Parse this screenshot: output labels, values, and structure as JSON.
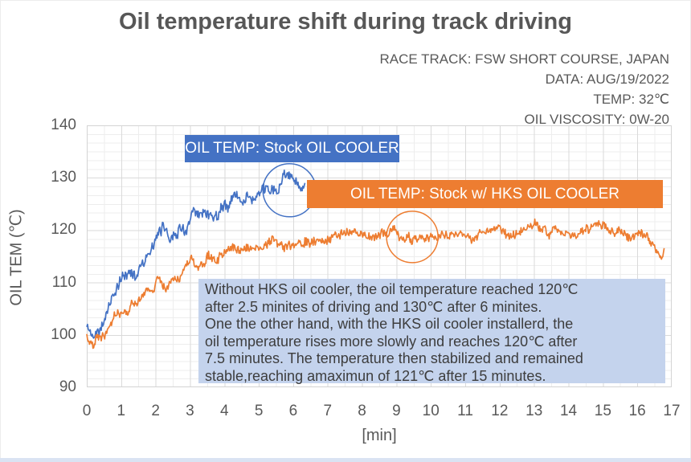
{
  "meta": {
    "lines": [
      "RACE TRACK: FSW SHORT COURSE, JAPAN",
      "DATA: AUG/19/2022",
      "TEMP: 32℃",
      "OIL VISCOSITY: 0W-20"
    ]
  },
  "annotation": {
    "lines": [
      "Without HKS oil cooler, the oil temperature reached 120℃",
      "after 2.5 minites of driving and 130℃ after 6 minites.",
      "One the other hand, with the HKS oil cooler installerd, the",
      "oil temperature rises more slowly and reaches 120℃ after",
      "7.5 minutes. The temperature then stabilized and remained",
      "stable,reaching amaximun of 121℃ after 15 minutes."
    ],
    "background": "#c4d3ed"
  },
  "chart_data": {
    "type": "line",
    "title": "Oil temperature shift during track driving",
    "xlabel": "[min]",
    "ylabel": "OIL TEM (℃)",
    "xlim": [
      0,
      17
    ],
    "ylim": [
      90,
      140
    ],
    "xticks": [
      0,
      1,
      2,
      3,
      4,
      5,
      6,
      7,
      8,
      9,
      10,
      11,
      12,
      13,
      14,
      15,
      16,
      17
    ],
    "yticks": [
      90,
      100,
      110,
      120,
      130,
      140
    ],
    "grid": {
      "x_minor_min": 0.5,
      "y_minor_degC": 1.667,
      "on": true
    },
    "legend_position": "inside-top",
    "series": [
      {
        "name": "OIL TEMP: Stock OIL COOLER",
        "color": "#4472C4",
        "trend_anchors_min_degC": [
          [
            0,
            101.5
          ],
          [
            0.15,
            99.8
          ],
          [
            0.3,
            101
          ],
          [
            0.5,
            103.5
          ],
          [
            0.75,
            107
          ],
          [
            1.0,
            110.5
          ],
          [
            1.25,
            112
          ],
          [
            1.45,
            111.5
          ],
          [
            1.6,
            114.5
          ],
          [
            1.75,
            115
          ],
          [
            2.0,
            117
          ],
          [
            2.25,
            121
          ],
          [
            2.4,
            118.5
          ],
          [
            2.55,
            120
          ],
          [
            2.75,
            121.5
          ],
          [
            2.9,
            120
          ],
          [
            3.1,
            123
          ],
          [
            3.3,
            122.5
          ],
          [
            3.5,
            123.5
          ],
          [
            3.7,
            123
          ],
          [
            3.9,
            124.5
          ],
          [
            4.1,
            124.5
          ],
          [
            4.3,
            126.5
          ],
          [
            4.5,
            125.5
          ],
          [
            4.7,
            126
          ],
          [
            4.9,
            126.5
          ],
          [
            5.05,
            128
          ],
          [
            5.2,
            127
          ],
          [
            5.4,
            127.5
          ],
          [
            5.55,
            126.5
          ],
          [
            5.7,
            129
          ],
          [
            5.85,
            130.5
          ],
          [
            6.0,
            130
          ],
          [
            6.1,
            128.5
          ],
          [
            6.2,
            127
          ],
          [
            6.3,
            126.5
          ],
          [
            6.35,
            127
          ]
        ],
        "noise": {
          "fast_amp": 0.85,
          "slow_amp": 1.0,
          "seed": 42
        },
        "key_points": {
          "reaches_120C_min": 2.5,
          "reaches_130C_min": 6,
          "end_min": 6.35
        }
      },
      {
        "name": "OIL TEMP: Stock w/ HKS OIL COOLER",
        "color": "#ED7D31",
        "trend_anchors_min_degC": [
          [
            0,
            99.8
          ],
          [
            0.2,
            98.8
          ],
          [
            0.35,
            100
          ],
          [
            0.5,
            99.5
          ],
          [
            0.7,
            101.5
          ],
          [
            0.9,
            103.5
          ],
          [
            1.1,
            105
          ],
          [
            1.3,
            106
          ],
          [
            1.5,
            105.5
          ],
          [
            1.7,
            107.5
          ],
          [
            1.9,
            108.5
          ],
          [
            2.1,
            110.5
          ],
          [
            2.3,
            108.8
          ],
          [
            2.5,
            110.5
          ],
          [
            2.7,
            111.5
          ],
          [
            2.9,
            113.5
          ],
          [
            3.05,
            115
          ],
          [
            3.2,
            113.5
          ],
          [
            3.4,
            114
          ],
          [
            3.6,
            115
          ],
          [
            3.8,
            114
          ],
          [
            4.0,
            115.5
          ],
          [
            4.25,
            116
          ],
          [
            4.5,
            116
          ],
          [
            4.75,
            116.5
          ],
          [
            5.0,
            116.5
          ],
          [
            5.25,
            117
          ],
          [
            5.5,
            117.5
          ],
          [
            5.75,
            117
          ],
          [
            6.0,
            117.5
          ],
          [
            6.25,
            117.8
          ],
          [
            6.5,
            118
          ],
          [
            6.75,
            118.3
          ],
          [
            7.0,
            118.5
          ],
          [
            7.25,
            119
          ],
          [
            7.5,
            119.5
          ],
          [
            7.75,
            119.3
          ],
          [
            8.0,
            119.5
          ],
          [
            8.25,
            119
          ],
          [
            8.5,
            119.2
          ],
          [
            8.75,
            119.5
          ],
          [
            9.0,
            119.2
          ],
          [
            9.2,
            118.5
          ],
          [
            9.4,
            118
          ],
          [
            9.6,
            117.5
          ],
          [
            9.8,
            118
          ],
          [
            10.0,
            118.3
          ],
          [
            10.25,
            118.8
          ],
          [
            10.5,
            119.3
          ],
          [
            10.75,
            119.8
          ],
          [
            11.0,
            120
          ],
          [
            11.25,
            119.5
          ],
          [
            11.5,
            119.8
          ],
          [
            11.75,
            120
          ],
          [
            12.0,
            119.8
          ],
          [
            12.2,
            118.8
          ],
          [
            12.4,
            119.5
          ],
          [
            12.6,
            120
          ],
          [
            12.8,
            120.3
          ],
          [
            13.0,
            121
          ],
          [
            13.2,
            120
          ],
          [
            13.4,
            120.3
          ],
          [
            13.6,
            120.5
          ],
          [
            13.8,
            120
          ],
          [
            14.0,
            120.3
          ],
          [
            14.2,
            119
          ],
          [
            14.4,
            120
          ],
          [
            14.6,
            120.3
          ],
          [
            14.8,
            120.8
          ],
          [
            15.0,
            121
          ],
          [
            15.2,
            120.5
          ],
          [
            15.4,
            120
          ],
          [
            15.6,
            119.8
          ],
          [
            15.8,
            119.5
          ],
          [
            16.0,
            119.8
          ],
          [
            16.2,
            119
          ],
          [
            16.35,
            118
          ],
          [
            16.5,
            117
          ],
          [
            16.6,
            115.8
          ],
          [
            16.7,
            115
          ],
          [
            16.78,
            116.3
          ]
        ],
        "noise": {
          "fast_amp": 0.7,
          "slow_amp": 0.8,
          "seed": 202
        },
        "key_points": {
          "reaches_120C_min": 7.5,
          "max_degC": 121,
          "max_at_min": 15,
          "end_min": 16.78
        }
      }
    ],
    "highlight_circles": [
      {
        "series": "stock",
        "color": "#4472C4",
        "center_min": 5.89,
        "center_degC": 127.6,
        "radius_px": 33
      },
      {
        "series": "hks",
        "color": "#ED7D31",
        "center_min": 9.46,
        "center_degC": 118.7,
        "radius_px": 32
      }
    ]
  },
  "colors": {
    "blue": "#4472C4",
    "orange": "#ED7D31",
    "text_gray": "#595959",
    "annotation_bg": "#c4d3ed",
    "bottom_bar": "#dae3f3"
  }
}
